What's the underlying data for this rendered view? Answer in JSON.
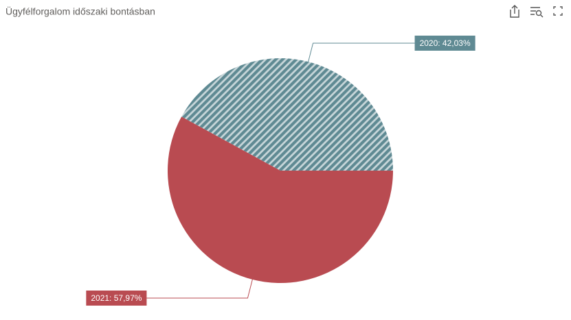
{
  "chart_data": {
    "type": "pie",
    "title": "Ügyfélforgalom időszaki bontásban",
    "values": [
      42.03,
      57.97
    ],
    "value_labels": [
      "2020: 42,03%",
      "2021: 57,97%"
    ],
    "colors": [
      "#5f8a93",
      "#b94b51"
    ],
    "hatched": [
      true,
      false
    ]
  }
}
